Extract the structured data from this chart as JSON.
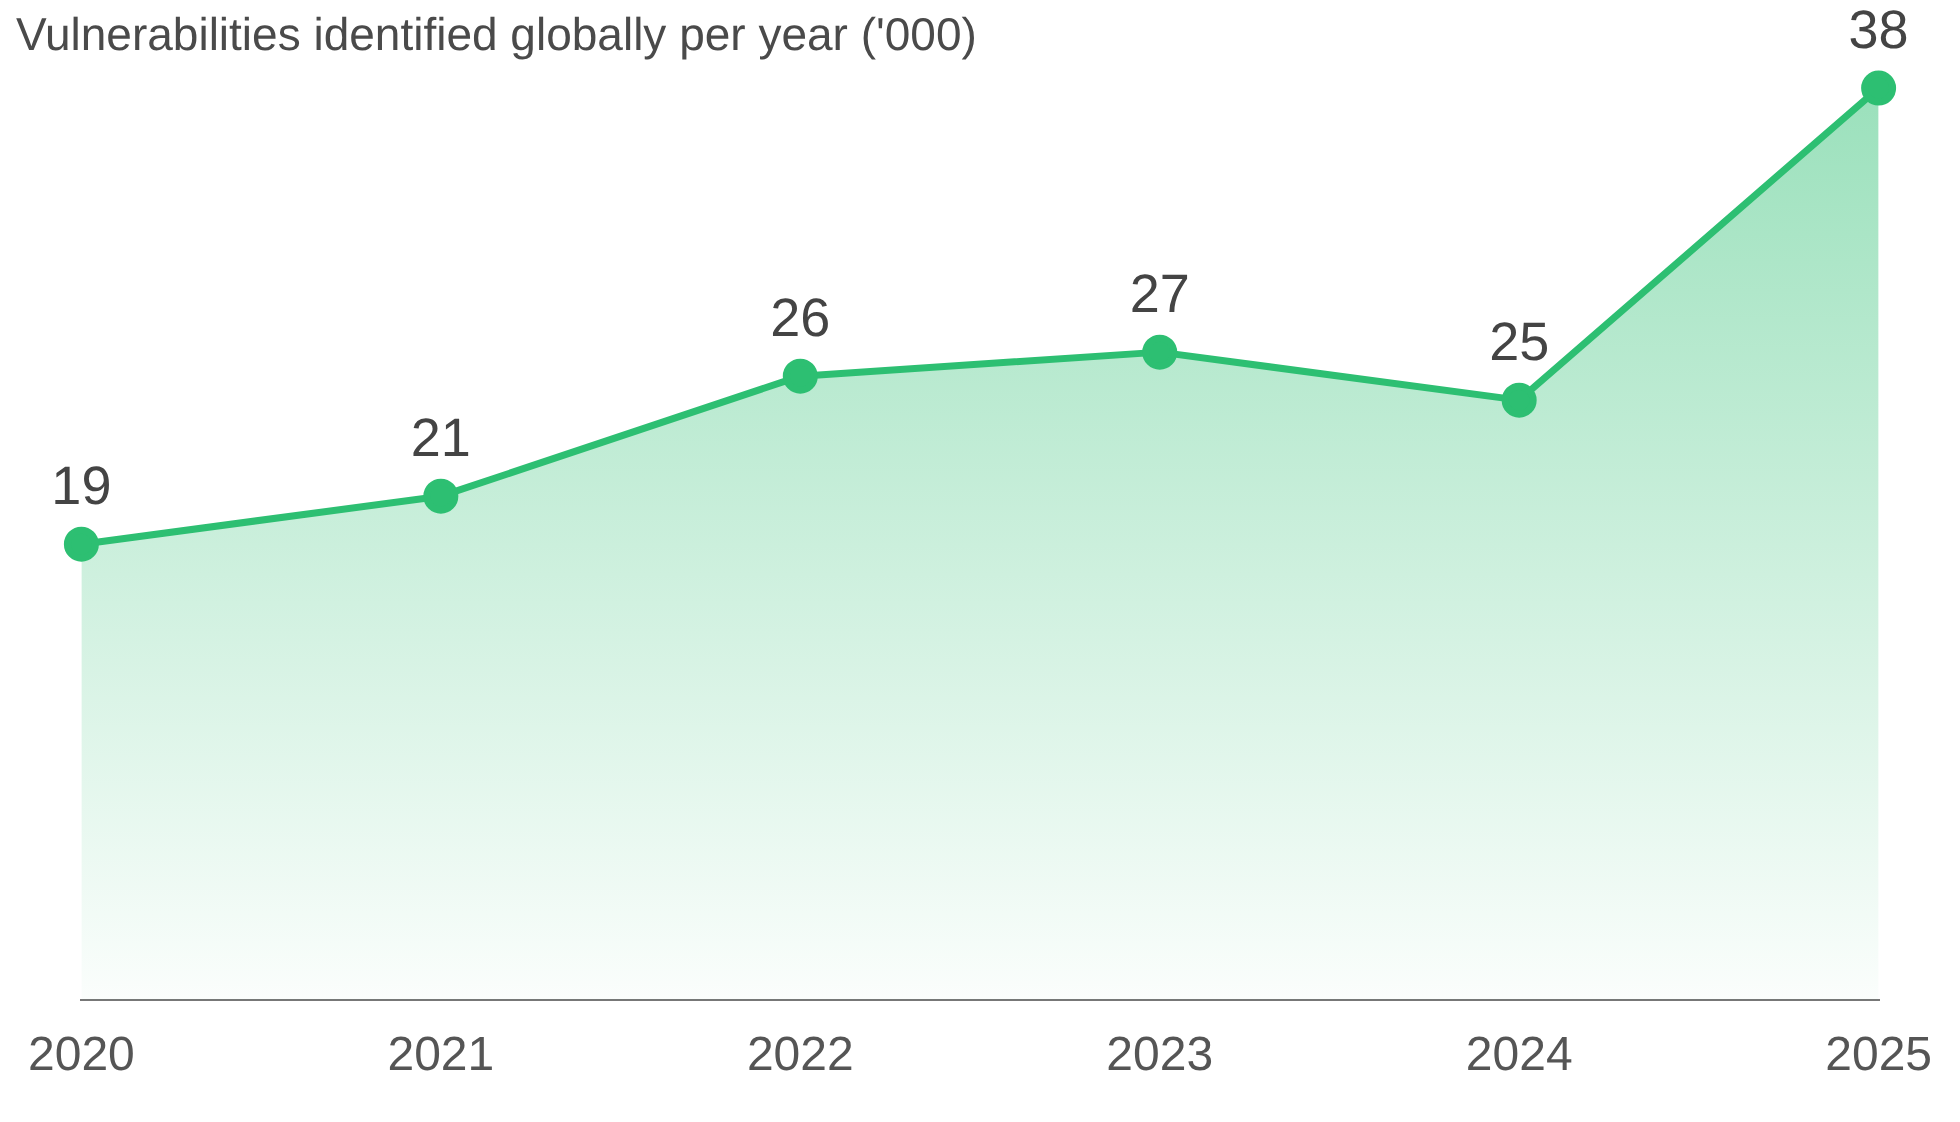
{
  "chart_data": {
    "type": "area",
    "title": "Vulnerabilities identified globally per year ('000)",
    "categories": [
      "2020",
      "2021",
      "2022",
      "2023",
      "2024",
      "2025"
    ],
    "series": [
      {
        "color": "#2dbf72",
        "values": [
          19,
          21,
          26,
          27,
          25,
          38
        ]
      }
    ],
    "data_labels": true,
    "marker": "circle",
    "grid": false,
    "legend": false
  }
}
